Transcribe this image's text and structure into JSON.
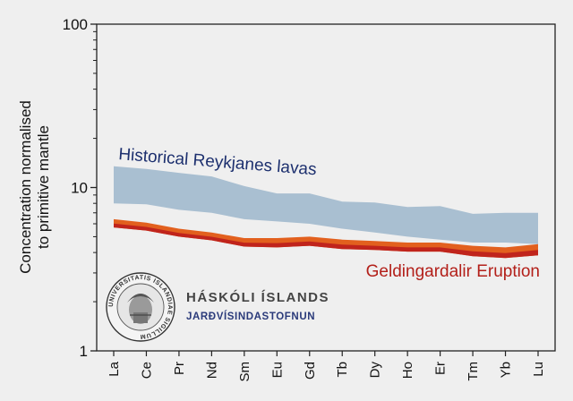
{
  "chart_data": {
    "type": "area",
    "scale": "log",
    "ylim": [
      1,
      100
    ],
    "yticks": [
      "1",
      "10",
      "100"
    ],
    "ylabel_lines": [
      "Concentration normalised",
      "to primitive mantle"
    ],
    "xlabel": "",
    "grid": false,
    "categories": [
      "La",
      "Ce",
      "Pr",
      "Nd",
      "Sm",
      "Eu",
      "Gd",
      "Tb",
      "Dy",
      "Ho",
      "Er",
      "Tm",
      "Yb",
      "Lu"
    ],
    "series": [
      {
        "name": "Historical Reykjanes lavas",
        "color": "#a9bfd1",
        "label_color": "#1c2f6e",
        "upper": [
          13.5,
          13.0,
          12.3,
          11.7,
          10.2,
          9.2,
          9.2,
          8.2,
          8.1,
          7.6,
          7.7,
          6.9,
          7.0,
          7.0
        ],
        "lower": [
          8.0,
          7.9,
          7.3,
          7.0,
          6.4,
          6.2,
          6.0,
          5.6,
          5.3,
          5.0,
          4.8,
          4.6,
          4.6,
          4.5
        ]
      },
      {
        "name": "Geldingardalir Eruption",
        "color": "#e2601e",
        "inner_color": "#c0241c",
        "label_color": "#b3201a",
        "upper": [
          6.4,
          6.1,
          5.6,
          5.3,
          4.9,
          4.9,
          5.0,
          4.8,
          4.7,
          4.6,
          4.6,
          4.4,
          4.3,
          4.5
        ],
        "lower": [
          5.7,
          5.45,
          5.0,
          4.75,
          4.35,
          4.3,
          4.4,
          4.2,
          4.15,
          4.05,
          4.05,
          3.8,
          3.7,
          3.85
        ]
      }
    ]
  },
  "logo": {
    "name": "HÁSKÓLI ÍSLANDS",
    "subtitle": "JARÐVÍSINDASTOFNUN",
    "seal_text": "UNIVERSITATIS ISLANDIAE SIGILLUM",
    "icon": "university-seal-icon"
  }
}
